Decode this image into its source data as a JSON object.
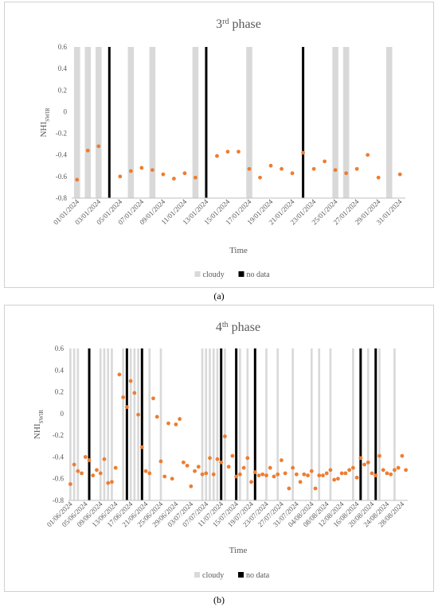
{
  "captions": [
    "(a)",
    "(b)"
  ],
  "colors": {
    "cloudy": "#d9d9d9",
    "nodata": "#000000",
    "point": "#ed7d31",
    "axis": "#595959"
  },
  "chart_data": [
    {
      "type": "scatter",
      "title_main": "3",
      "title_sup": "rd",
      "title_rest": " phase",
      "ylabel_main": "NHI",
      "ylabel_sub": "SWIR",
      "xlabel": "Time",
      "ylim": [
        -0.8,
        0.6
      ],
      "yticks": [
        0.6,
        0.4,
        0.2,
        0,
        -0.2,
        -0.4,
        -0.6,
        -0.8
      ],
      "x_range": [
        0.5,
        31.5
      ],
      "xtick_labels": [
        "01/01/2024",
        "03/01/2024",
        "05/01/2024",
        "07/01/2024",
        "09/01/2024",
        "11/01/2024",
        "13/01/2024",
        "15/01/2024",
        "17/01/2024",
        "19/01/2024",
        "21/01/2024",
        "23/01/2024",
        "25/01/2024",
        "27/01/2024",
        "29/01/2024",
        "31/01/2024"
      ],
      "xtick_positions": [
        1,
        3,
        5,
        7,
        9,
        11,
        13,
        15,
        17,
        19,
        21,
        23,
        25,
        27,
        29,
        31
      ],
      "legend": [
        "cloudy",
        "no data"
      ],
      "cloudy_days": [
        1,
        2,
        3,
        6,
        8,
        12,
        17,
        25,
        26,
        30
      ],
      "nodata_days": [
        4,
        13,
        22
      ],
      "points": {
        "x": [
          1,
          2,
          3,
          5,
          6,
          7,
          8,
          9,
          10,
          11,
          12,
          14,
          15,
          16,
          17,
          18,
          19,
          20,
          21,
          22,
          23,
          24,
          25,
          26,
          27,
          28,
          29,
          31
        ],
        "y": [
          -0.63,
          -0.36,
          -0.32,
          -0.6,
          -0.55,
          -0.52,
          -0.54,
          -0.58,
          -0.62,
          -0.57,
          -0.61,
          -0.41,
          -0.37,
          -0.37,
          -0.53,
          -0.61,
          -0.5,
          -0.53,
          -0.57,
          -0.38,
          -0.53,
          -0.46,
          -0.54,
          -0.57,
          -0.53,
          -0.4,
          -0.61,
          -0.58
        ]
      }
    },
    {
      "type": "scatter",
      "title_main": "4",
      "title_sup": "th",
      "title_rest": " phase",
      "ylabel_main": "NHI",
      "ylabel_sub": "SWIR",
      "xlabel": "Time",
      "ylim": [
        -0.8,
        0.6
      ],
      "yticks": [
        0.6,
        0.4,
        0.2,
        0,
        -0.2,
        -0.4,
        -0.6,
        -0.8
      ],
      "x_range": [
        0.5,
        90.5
      ],
      "xtick_labels": [
        "01/06/2024",
        "05/06/2024",
        "09/06/2024",
        "13/06/2024",
        "17/06/2024",
        "21/06/2024",
        "25/06/2024",
        "29/06/2024",
        "03/07/2024",
        "07/07/2024",
        "11/07/2024",
        "15/07/2024",
        "19/07/2024",
        "23/07/2024",
        "27/07/2024",
        "31/07/2024",
        "04/08/2024",
        "08/08/2024",
        "12/08/2024",
        "16/08/2024",
        "20/08/2024",
        "24/08/2024",
        "28/08/2024"
      ],
      "xtick_positions": [
        1,
        5,
        9,
        13,
        17,
        21,
        25,
        29,
        33,
        37,
        41,
        45,
        49,
        53,
        57,
        61,
        65,
        69,
        73,
        77,
        81,
        85,
        89
      ],
      "legend": [
        "cloudy",
        "no data"
      ],
      "cloudy_days": [
        1,
        2,
        3,
        9,
        10,
        11,
        12,
        15,
        17,
        18,
        19,
        22,
        25,
        36,
        37,
        38,
        39,
        40,
        42,
        46,
        48,
        53,
        56,
        60,
        65,
        67,
        70,
        76,
        78,
        80,
        83,
        87
      ],
      "nodata_days": [
        6,
        16,
        20,
        41,
        45,
        50,
        78,
        82
      ],
      "points": {
        "x": [
          1,
          2,
          3,
          4,
          5,
          6,
          7,
          8,
          9,
          10,
          11,
          12,
          13,
          14,
          15,
          16,
          17,
          18,
          19,
          20,
          21,
          22,
          23,
          24,
          25,
          26,
          27,
          28,
          29,
          30,
          31,
          32,
          33,
          34,
          35,
          36,
          37,
          38,
          39,
          40,
          41,
          42,
          43,
          44,
          45,
          46,
          47,
          48,
          49,
          50,
          51,
          52,
          53,
          54,
          55,
          56,
          57,
          58,
          59,
          60,
          61,
          62,
          63,
          64,
          65,
          66,
          67,
          68,
          69,
          70,
          71,
          72,
          73,
          74,
          75,
          76,
          77,
          78,
          79,
          80,
          81,
          82,
          83,
          84,
          85,
          86,
          87,
          88,
          89,
          90
        ],
        "y": [
          -0.65,
          -0.47,
          -0.53,
          -0.55,
          -0.4,
          -0.43,
          -0.57,
          -0.52,
          -0.55,
          -0.42,
          -0.64,
          -0.63,
          -0.5,
          0.36,
          0.15,
          0.06,
          0.3,
          0.19,
          -0.01,
          -0.31,
          -0.53,
          -0.55,
          0.14,
          -0.03,
          -0.44,
          -0.58,
          -0.09,
          -0.6,
          -0.1,
          -0.05,
          -0.45,
          -0.48,
          -0.67,
          -0.53,
          -0.49,
          -0.56,
          -0.55,
          -0.41,
          -0.56,
          -0.42,
          -0.45,
          -0.21,
          -0.49,
          -0.39,
          -0.58,
          -0.56,
          -0.5,
          -0.41,
          -0.63,
          -0.54,
          -0.57,
          -0.56,
          -0.57,
          -0.5,
          -0.58,
          -0.56,
          -0.43,
          -0.55,
          -0.69,
          -0.5,
          -0.56,
          -0.63,
          -0.56,
          -0.57,
          -0.53,
          -0.69,
          -0.57,
          -0.57,
          -0.55,
          -0.52,
          -0.61,
          -0.6,
          -0.55,
          -0.55,
          -0.52,
          -0.5,
          -0.59,
          -0.41,
          -0.47,
          -0.45,
          -0.55,
          -0.57,
          -0.39,
          -0.52,
          -0.55,
          -0.56,
          -0.52,
          -0.5,
          -0.39,
          -0.52
        ]
      }
    }
  ]
}
